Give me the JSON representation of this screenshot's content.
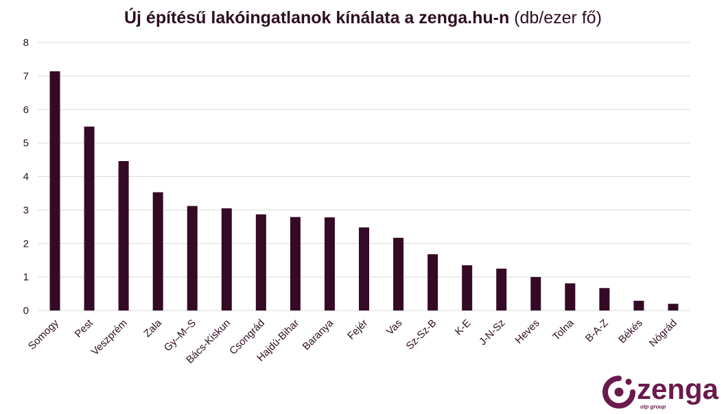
{
  "chart_data": {
    "type": "bar",
    "title": "Új építésű lakóingatlanok kínálata a zenga.hu-n",
    "title_unit": "(db/ezer fő)",
    "xlabel": "",
    "ylabel": "",
    "ylim": [
      0,
      8
    ],
    "yticks": [
      0,
      1,
      2,
      3,
      4,
      5,
      6,
      7,
      8
    ],
    "grid": true,
    "bar_color": "#350a26",
    "grid_color": "#d9d9d9",
    "categories": [
      "Somogy",
      "Pest",
      "Veszprém",
      "Zala",
      "Gy–M–S",
      "Bács-Kiskun",
      "Csongrád",
      "Hajdú-Bihar",
      "Baranya",
      "Fejér",
      "Vas",
      "Sz-Sz-B",
      "K-E",
      "J-N-Sz",
      "Heves",
      "Tolna",
      "B-A-Z",
      "Békés",
      "Nógrád"
    ],
    "values": [
      7.14,
      5.49,
      4.46,
      3.53,
      3.12,
      3.05,
      2.87,
      2.79,
      2.78,
      2.48,
      2.17,
      1.68,
      1.35,
      1.25,
      1.0,
      0.81,
      0.67,
      0.29,
      0.2
    ]
  },
  "logo": {
    "name": "zenga",
    "sub": "otp group",
    "color": "#6a1a4c",
    "icon": "zenga-logo-icon"
  }
}
